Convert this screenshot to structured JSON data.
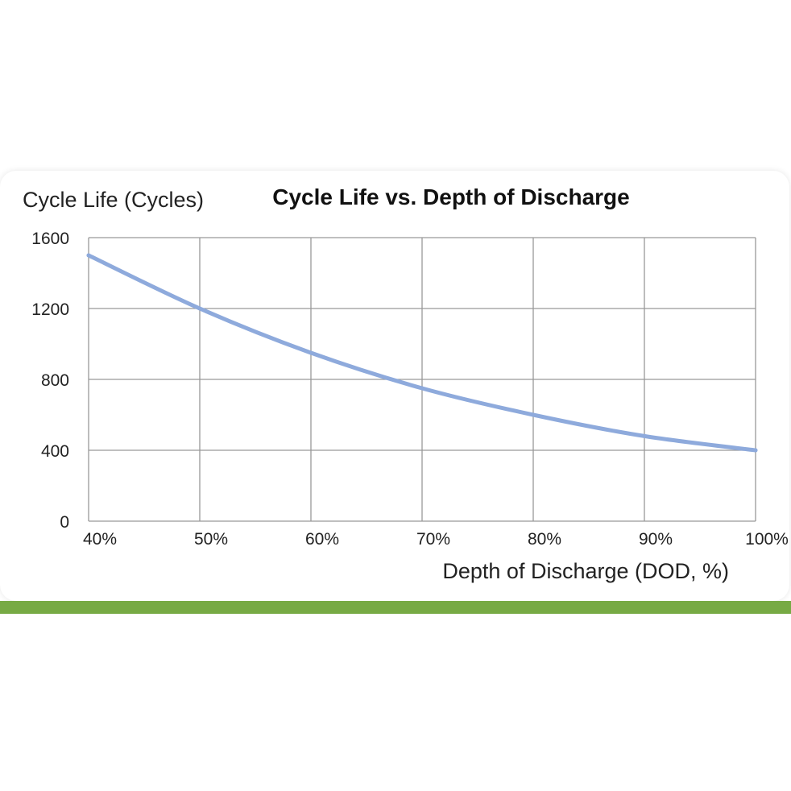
{
  "chart_data": {
    "type": "line",
    "title": "Cycle Life vs. Depth of Discharge",
    "ylabel": "Cycle Life (Cycles)",
    "xlabel": "Depth of Discharge (DOD, %)",
    "x": [
      40,
      50,
      60,
      70,
      80,
      90,
      100
    ],
    "x_tick_labels": [
      "40%",
      "50%",
      "60%",
      "70%",
      "80%",
      "90%",
      "100%"
    ],
    "xlim": [
      40,
      100
    ],
    "y_ticks": [
      0,
      400,
      800,
      1200,
      1600
    ],
    "y_tick_labels": [
      "0",
      "400",
      "800",
      "1200",
      "1600"
    ],
    "ylim": [
      0,
      1600
    ],
    "grid": true,
    "series": [
      {
        "values": [
          1500,
          1200,
          950,
          750,
          600,
          480,
          400
        ],
        "color": "#8eaadc"
      }
    ]
  },
  "colors": {
    "accent_bar": "#77aa44",
    "grid": "#999999",
    "line": "#8eaadc"
  }
}
